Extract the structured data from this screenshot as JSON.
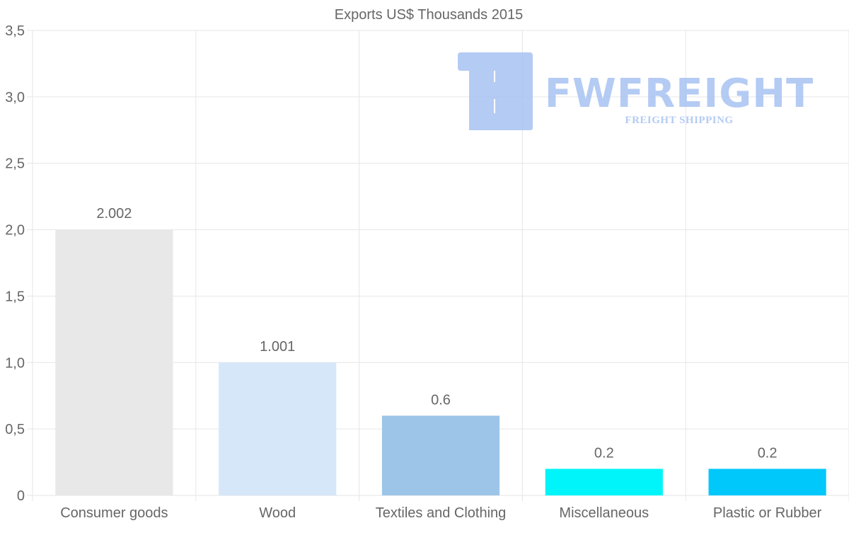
{
  "chart_data": {
    "type": "bar",
    "title": "Exports US$ Thousands 2015",
    "categories": [
      "Consumer goods",
      "Wood",
      "Textiles and Clothing",
      "Miscellaneous",
      "Plastic or Rubber"
    ],
    "values": [
      2.002,
      1.001,
      0.6,
      0.2,
      0.2
    ],
    "value_labels": [
      "2.002",
      "1.001",
      "0.6",
      "0.2",
      "0.2"
    ],
    "bar_colors": [
      "#e8e8e8",
      "#d6e7f9",
      "#9dc5e8",
      "#00f5fa",
      "#00c8fb"
    ],
    "xlabel": "",
    "ylabel": "",
    "ylim": [
      0,
      3.5
    ],
    "y_ticks": [
      0,
      0.5,
      1.0,
      1.5,
      2.0,
      2.5,
      3.0,
      3.5
    ],
    "y_tick_labels": [
      "0",
      "0,5",
      "1,0",
      "1,5",
      "2,0",
      "2,5",
      "3,0",
      "3,5"
    ],
    "grid": true,
    "legend": "none"
  },
  "watermark": {
    "brand": "FWFREIGHT",
    "tagline": "FREIGHT SHIPPING",
    "color": "#a7c3f1"
  },
  "colors": {
    "grid": "#e6e6e6",
    "text": "#666666"
  }
}
